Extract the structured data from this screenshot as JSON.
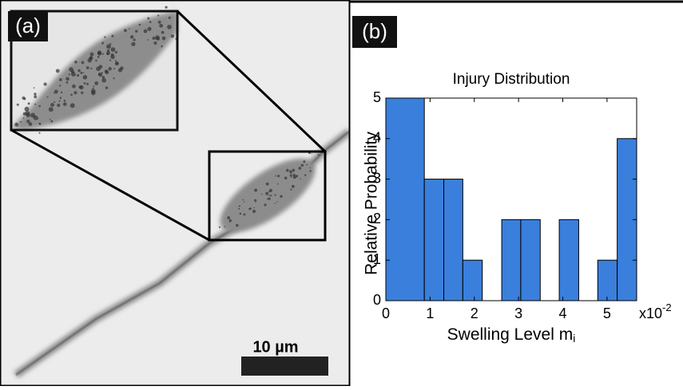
{
  "panel_a": {
    "label": "(a)",
    "scale_bar": "10 µm"
  },
  "chart_data": {
    "type": "histogram",
    "panel_label": "(b)",
    "title": "Injury Distribution",
    "y_label": "Relative Probability",
    "x_label": "Swelling Level m",
    "x_label_subscript": "i",
    "x_multiplier": "x10",
    "x_multiplier_exponent": "-2",
    "bins": [
      0,
      0.87,
      1.31,
      1.74,
      2.18,
      2.62,
      3.05,
      3.49,
      3.92,
      4.36,
      4.79,
      5.23,
      5.67
    ],
    "values": [
      5,
      3,
      3,
      1,
      0,
      2,
      2,
      0,
      2,
      0,
      1,
      4
    ],
    "color": "#3a7fdc",
    "xlim": [
      0,
      5.67
    ],
    "xticks": [
      0,
      1,
      2,
      3,
      4,
      5
    ],
    "ylim": [
      0,
      5
    ],
    "yticks": [
      0,
      1,
      2,
      3,
      4,
      5
    ]
  }
}
